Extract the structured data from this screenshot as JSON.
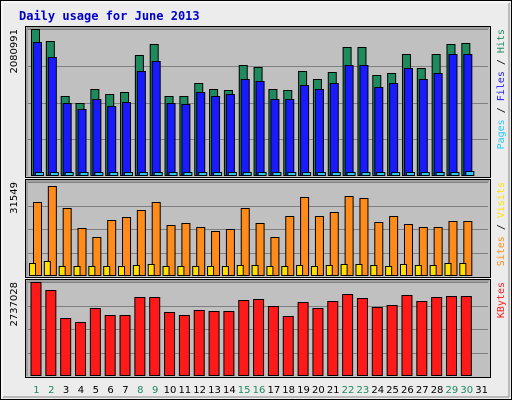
{
  "chart_data": {
    "type": "bar",
    "title": "Daily usage for June 2013",
    "colors": {
      "hits": "#1f8a5e",
      "files": "#1a1aff",
      "pages": "#2ec8f0",
      "visits": "#ffe000",
      "sites": "#ff8c1a",
      "kbytes": "#ff1a1a",
      "weekend_label": "#1f8a5e",
      "weekday_label": "#000000"
    },
    "days": [
      "1",
      "2",
      "3",
      "4",
      "5",
      "6",
      "7",
      "8",
      "9",
      "10",
      "11",
      "12",
      "13",
      "14",
      "15",
      "16",
      "17",
      "18",
      "19",
      "20",
      "21",
      "22",
      "23",
      "24",
      "25",
      "26",
      "27",
      "28",
      "29",
      "30",
      "31"
    ],
    "weekend_days": [
      1,
      2,
      8,
      9,
      15,
      16,
      22,
      23,
      29,
      30
    ],
    "panels": [
      {
        "key": "hits_files",
        "axis_max_label": "2080991",
        "ylim": [
          0,
          2080991
        ],
        "y_labels": [
          {
            "text": "Pages",
            "color": "#2ec8f0"
          },
          {
            "text": " / ",
            "color": "#000000"
          },
          {
            "text": "Files",
            "color": "#1a1aff"
          },
          {
            "text": " / ",
            "color": "#000000"
          },
          {
            "text": "Hits",
            "color": "#1f8a5e"
          }
        ],
        "series": [
          {
            "name": "Hits",
            "color": "#1f8a5e",
            "values": [
              2080991,
              1907000,
              1135000,
              1035000,
              1234000,
              1162000,
              1191000,
              1711000,
              1864000,
              1135000,
              1135000,
              1319000,
              1234000,
              1219000,
              1574000,
              1546000,
              1234000,
              1219000,
              1487000,
              1376000,
              1475000,
              1821000,
              1821000,
              1430000,
              1461000,
              1734000,
              1532000,
              1734000,
              1864000,
              1877000,
              0
            ]
          },
          {
            "name": "Files",
            "color": "#1a1aff",
            "values": [
              1894000,
              1679000,
              1035000,
              950000,
              1092000,
              993000,
              1049000,
              1483000,
              1622000,
              1035000,
              1021000,
              1191000,
              1135000,
              1162000,
              1376000,
              1348000,
              1092000,
              1092000,
              1291000,
              1234000,
              1319000,
              1578000,
              1577000,
              1262000,
              1319000,
              1524000,
              1376000,
              1461000,
              1734000,
              1724000,
              0
            ]
          },
          {
            "name": "Pages",
            "color": "#2ec8f0",
            "values": [
              57000,
              57000,
              57000,
              57000,
              57000,
              57000,
              57000,
              57000,
              57000,
              57000,
              57000,
              57000,
              57000,
              57000,
              57000,
              57000,
              57000,
              57000,
              57000,
              57000,
              57000,
              57000,
              57000,
              57000,
              57000,
              57000,
              57000,
              57000,
              57000,
              71000,
              0
            ]
          }
        ]
      },
      {
        "key": "visits_sites",
        "axis_max_label": "31549",
        "ylim": [
          0,
          31549
        ],
        "y_labels": [
          {
            "text": "Sites",
            "color": "#ff8c1a"
          },
          {
            "text": " / ",
            "color": "#000000"
          },
          {
            "text": "Visits",
            "color": "#ffe000"
          }
        ],
        "series": [
          {
            "name": "Sites",
            "color": "#ff8c1a",
            "values": [
              25000,
              30200,
              22900,
              16100,
              13100,
              18900,
              19800,
              22300,
              24800,
              17200,
              17700,
              16600,
              15000,
              15800,
              22800,
              17800,
              13200,
              20100,
              26500,
              20100,
              21400,
              26900,
              26200,
              18100,
              20300,
              17500,
              16400,
              16400,
              18300,
              18600,
              0
            ]
          },
          {
            "name": "Visits",
            "color": "#ffe000",
            "values": [
              4400,
              5100,
              3300,
              3200,
              3200,
              3200,
              3200,
              3700,
              4000,
              3200,
              3200,
              3400,
              3200,
              3400,
              3700,
              3600,
              3400,
              3400,
              3700,
              3400,
              3600,
              4000,
              4100,
              3800,
              3500,
              4100,
              3600,
              3600,
              4400,
              4400,
              0
            ]
          }
        ]
      },
      {
        "key": "kbytes",
        "axis_max_label": "2737028",
        "ylim": [
          0,
          2737028
        ],
        "y_labels": [
          {
            "text": "KBytes",
            "color": "#ff1a1a"
          }
        ],
        "series": [
          {
            "name": "KBytes",
            "color": "#ff1a1a",
            "values": [
              2737028,
              2507000,
              1695000,
              1563000,
              1967000,
              1781000,
              1781000,
              2302000,
              2302000,
              1865000,
              1765000,
              1917000,
              1889000,
              1889000,
              2201000,
              2228000,
              2052000,
              1751000,
              2157000,
              1967000,
              2175000,
              2377000,
              2268000,
              2009000,
              2073000,
              2348000,
              2173000,
              2306000,
              2333000,
              2333000,
              0
            ]
          }
        ]
      }
    ]
  }
}
